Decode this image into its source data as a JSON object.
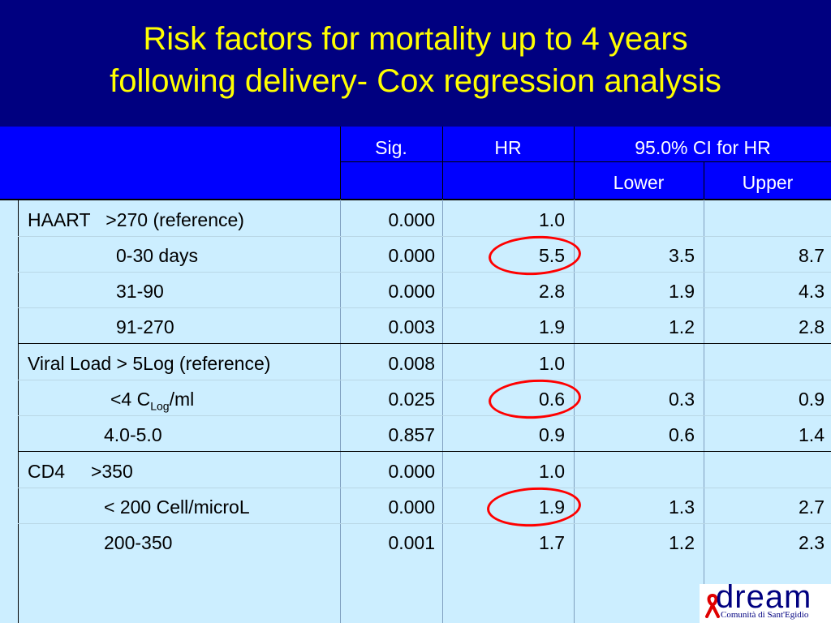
{
  "title": {
    "line1": "Risk factors for mortality up to 4 years",
    "line2": "following delivery- Cox regression analysis"
  },
  "header": {
    "sig": "Sig.",
    "hr": "HR",
    "ci": "95.0% CI for HR",
    "lower": "Lower",
    "upper": "Upper"
  },
  "rows": [
    {
      "label": "HAART   >270 (reference)",
      "sig": "0.000",
      "hr": "1.0",
      "lower": "",
      "upper": ""
    },
    {
      "label": "0-30 days",
      "sig": "0.000",
      "hr": "5.5",
      "lower": "3.5",
      "upper": "8.7"
    },
    {
      "label": "31-90",
      "sig": "0.000",
      "hr": "2.8",
      "lower": "1.9",
      "upper": "4.3"
    },
    {
      "label": "91-270",
      "sig": "0.003",
      "hr": "1.9",
      "lower": "1.2",
      "upper": "2.8"
    },
    {
      "label": "Viral Load > 5Log (reference)",
      "sig": "0.008",
      "hr": "1.0",
      "lower": "",
      "upper": ""
    },
    {
      "label_pre": "<4 C",
      "label_sub": "Log",
      "label_post": "/ml",
      "sig": "0.025",
      "hr": "0.6",
      "lower": "0.3",
      "upper": "0.9"
    },
    {
      "label": "4.0-5.0",
      "sig": "0.857",
      "hr": "0.9",
      "lower": "0.6",
      "upper": "1.4"
    },
    {
      "label": "CD4     >350",
      "sig": "0.000",
      "hr": "1.0",
      "lower": "",
      "upper": ""
    },
    {
      "label": "< 200 Cell/microL",
      "sig": "0.000",
      "hr": "1.9",
      "lower": "1.3",
      "upper": "2.7"
    },
    {
      "label": "200-350",
      "sig": "0.001",
      "hr": "1.7",
      "lower": "1.2",
      "upper": "2.3"
    }
  ],
  "logo": {
    "word": "dream",
    "subtitle": "Comunità di Sant'Egidio"
  },
  "colors": {
    "background": "#000080",
    "title": "#ffff00",
    "header": "#0000ff",
    "body": "#cceeff",
    "highlight_ring": "#ff0000"
  }
}
